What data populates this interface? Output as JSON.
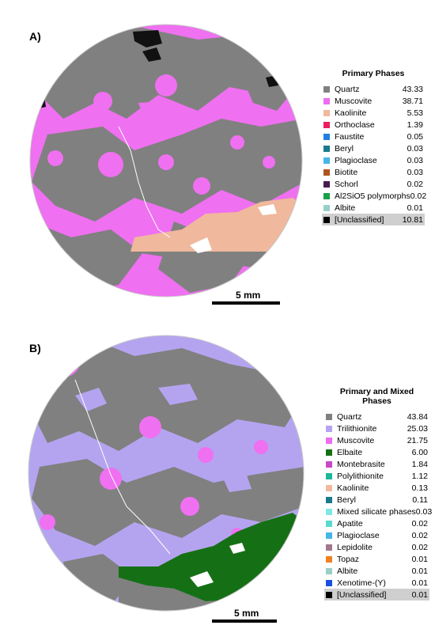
{
  "panels": [
    {
      "label": "A)",
      "scale_label": "5 mm",
      "legend_title": "Primary Phases",
      "legend": [
        {
          "name": "Quartz",
          "value": "43.33",
          "color": "#808080"
        },
        {
          "name": "Muscovite",
          "value": "38.71",
          "color": "#ee6cf0"
        },
        {
          "name": "Kaolinite",
          "value": "5.53",
          "color": "#f1b99e"
        },
        {
          "name": "Orthoclase",
          "value": "1.39",
          "color": "#e8205c"
        },
        {
          "name": "Faustite",
          "value": "0.05",
          "color": "#1e7fe0"
        },
        {
          "name": "Beryl",
          "value": "0.03",
          "color": "#1a7a8c"
        },
        {
          "name": "Plagioclase",
          "value": "0.03",
          "color": "#45b6e8"
        },
        {
          "name": "Biotite",
          "value": "0.03",
          "color": "#b0541e"
        },
        {
          "name": "Schorl",
          "value": "0.02",
          "color": "#4a1a52"
        },
        {
          "name": "Al2SiO5 polymorphs",
          "value": "0.02",
          "color": "#1aa048"
        },
        {
          "name": "Albite",
          "value": "0.01",
          "color": "#99cfc8"
        },
        {
          "name": "[Unclassified]",
          "value": "10.81",
          "color": "#000000",
          "highlight": true
        }
      ]
    },
    {
      "label": "B)",
      "scale_label": "5 mm",
      "legend_title": "Primary and Mixed Phases",
      "legend": [
        {
          "name": "Quartz",
          "value": "43.84",
          "color": "#808080"
        },
        {
          "name": "Trilithionite",
          "value": "25.03",
          "color": "#b4a4f0"
        },
        {
          "name": "Muscovite",
          "value": "21.75",
          "color": "#ee6cf0"
        },
        {
          "name": "Elbaite",
          "value": "6.00",
          "color": "#157015"
        },
        {
          "name": "Montebrasite",
          "value": "1.84",
          "color": "#c848c8"
        },
        {
          "name": "Polylithionite",
          "value": "1.12",
          "color": "#1ab89a"
        },
        {
          "name": "Kaolinite",
          "value": "0.13",
          "color": "#f1b99e"
        },
        {
          "name": "Beryl",
          "value": "0.11",
          "color": "#1a7a8c"
        },
        {
          "name": "Mixed silicate phases",
          "value": "0.03",
          "color": "#7ee8e8"
        },
        {
          "name": "Apatite",
          "value": "0.02",
          "color": "#5ad8d0"
        },
        {
          "name": "Plagioclase",
          "value": "0.02",
          "color": "#45b6e8"
        },
        {
          "name": "Lepidolite",
          "value": "0.02",
          "color": "#a07890"
        },
        {
          "name": "Topaz",
          "value": "0.01",
          "color": "#f08020"
        },
        {
          "name": "Albite",
          "value": "0.01",
          "color": "#99cfc8"
        },
        {
          "name": "Xenotime-(Y)",
          "value": "0.01",
          "color": "#1a50e0"
        },
        {
          "name": "[Unclassified]",
          "value": "0.01",
          "color": "#000000",
          "highlight": true
        }
      ]
    }
  ]
}
